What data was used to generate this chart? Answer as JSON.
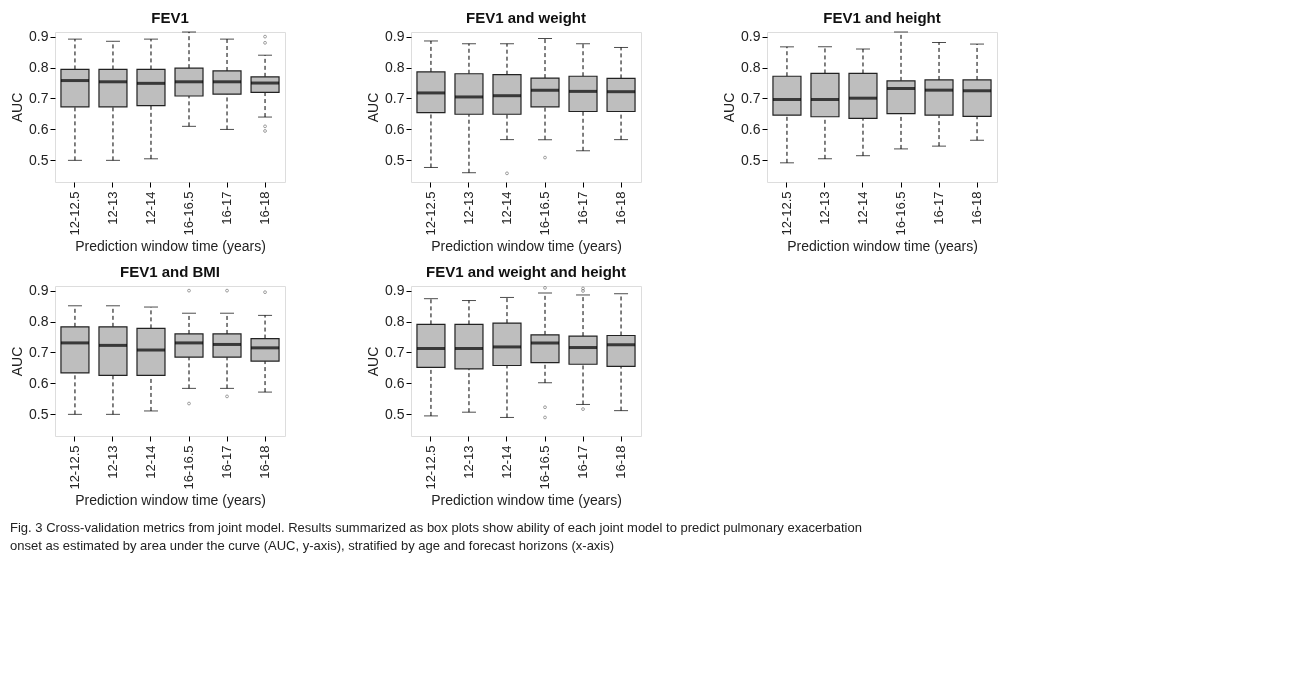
{
  "chart_data": [
    {
      "type": "box",
      "title": "FEV1",
      "xlabel": "Prediction window time (years)",
      "ylabel": "AUC",
      "categories": [
        "12-12.5",
        "12-13",
        "12-14",
        "16-16.5",
        "16-17",
        "16-18"
      ],
      "ylim": [
        0.43,
        0.915
      ],
      "yticks": [
        0.5,
        0.6,
        0.7,
        0.8,
        0.9
      ],
      "marker": "circle",
      "line_style": "dashed",
      "series": [
        {
          "color": "#bebebe",
          "boxes": [
            {
              "low": 0.5,
              "q1": 0.673,
              "median": 0.758,
              "q3": 0.794,
              "high": 0.892
            },
            {
              "low": 0.5,
              "q1": 0.673,
              "median": 0.754,
              "q3": 0.794,
              "high": 0.885
            },
            {
              "low": 0.505,
              "q1": 0.677,
              "median": 0.749,
              "q3": 0.794,
              "high": 0.892
            },
            {
              "low": 0.61,
              "q1": 0.708,
              "median": 0.754,
              "q3": 0.798,
              "high": 0.915
            },
            {
              "low": 0.6,
              "q1": 0.714,
              "median": 0.754,
              "q3": 0.789,
              "high": 0.892
            },
            {
              "low": 0.64,
              "q1": 0.72,
              "median": 0.75,
              "q3": 0.77,
              "high": 0.84,
              "outliers": [
                0.9,
                0.88,
                0.61,
                0.595
              ]
            }
          ]
        }
      ]
    },
    {
      "type": "box",
      "title": "FEV1 and weight",
      "xlabel": "Prediction window time (years)",
      "ylabel": "AUC",
      "categories": [
        "12-12.5",
        "12-13",
        "12-14",
        "16-16.5",
        "16-17",
        "16-18"
      ],
      "ylim": [
        0.43,
        0.915
      ],
      "yticks": [
        0.5,
        0.6,
        0.7,
        0.8,
        0.9
      ],
      "marker": "circle",
      "line_style": "dashed",
      "series": [
        {
          "color": "#bebebe",
          "boxes": [
            {
              "low": 0.477,
              "q1": 0.654,
              "median": 0.718,
              "q3": 0.786,
              "high": 0.886
            },
            {
              "low": 0.46,
              "q1": 0.649,
              "median": 0.705,
              "q3": 0.78,
              "high": 0.877
            },
            {
              "low": 0.567,
              "q1": 0.649,
              "median": 0.709,
              "q3": 0.777,
              "high": 0.877,
              "outliers": [
                0.458
              ]
            },
            {
              "low": 0.567,
              "q1": 0.673,
              "median": 0.727,
              "q3": 0.766,
              "high": 0.894,
              "outliers": [
                0.509
              ]
            },
            {
              "low": 0.531,
              "q1": 0.658,
              "median": 0.723,
              "q3": 0.772,
              "high": 0.877
            },
            {
              "low": 0.567,
              "q1": 0.658,
              "median": 0.722,
              "q3": 0.765,
              "high": 0.865
            }
          ]
        }
      ]
    },
    {
      "type": "box",
      "title": "FEV1 and height",
      "xlabel": "Prediction window time (years)",
      "ylabel": "AUC",
      "categories": [
        "12-12.5",
        "12-13",
        "12-14",
        "16-16.5",
        "16-17",
        "16-18"
      ],
      "ylim": [
        0.43,
        0.915
      ],
      "yticks": [
        0.5,
        0.6,
        0.7,
        0.8,
        0.9
      ],
      "marker": "circle",
      "line_style": "dashed",
      "series": [
        {
          "color": "#bebebe",
          "boxes": [
            {
              "low": 0.492,
              "q1": 0.646,
              "median": 0.697,
              "q3": 0.772,
              "high": 0.867
            },
            {
              "low": 0.505,
              "q1": 0.641,
              "median": 0.697,
              "q3": 0.781,
              "high": 0.867
            },
            {
              "low": 0.515,
              "q1": 0.636,
              "median": 0.701,
              "q3": 0.781,
              "high": 0.86
            },
            {
              "low": 0.537,
              "q1": 0.651,
              "median": 0.732,
              "q3": 0.757,
              "high": 0.915
            },
            {
              "low": 0.546,
              "q1": 0.646,
              "median": 0.727,
              "q3": 0.76,
              "high": 0.881
            },
            {
              "low": 0.565,
              "q1": 0.642,
              "median": 0.725,
              "q3": 0.76,
              "high": 0.876
            }
          ]
        }
      ]
    },
    {
      "type": "box",
      "title": "FEV1 and BMI",
      "xlabel": "Prediction window time (years)",
      "ylabel": "AUC",
      "categories": [
        "12-12.5",
        "12-13",
        "12-14",
        "16-16.5",
        "16-17",
        "16-18"
      ],
      "ylim": [
        0.43,
        0.915
      ],
      "yticks": [
        0.5,
        0.6,
        0.7,
        0.8,
        0.9
      ],
      "marker": "circle",
      "line_style": "dashed",
      "series": [
        {
          "color": "#bebebe",
          "boxes": [
            {
              "low": 0.5,
              "q1": 0.634,
              "median": 0.731,
              "q3": 0.783,
              "high": 0.851
            },
            {
              "low": 0.5,
              "q1": 0.626,
              "median": 0.723,
              "q3": 0.783,
              "high": 0.851
            },
            {
              "low": 0.511,
              "q1": 0.626,
              "median": 0.708,
              "q3": 0.778,
              "high": 0.847
            },
            {
              "low": 0.584,
              "q1": 0.685,
              "median": 0.731,
              "q3": 0.76,
              "high": 0.827,
              "outliers": [
                0.9,
                0.535
              ]
            },
            {
              "low": 0.584,
              "q1": 0.685,
              "median": 0.726,
              "q3": 0.76,
              "high": 0.827,
              "outliers": [
                0.9,
                0.558
              ]
            },
            {
              "low": 0.572,
              "q1": 0.672,
              "median": 0.715,
              "q3": 0.745,
              "high": 0.82,
              "outliers": [
                0.895
              ]
            }
          ]
        }
      ]
    },
    {
      "type": "box",
      "title": "FEV1 and weight and height",
      "xlabel": "Prediction window time (years)",
      "ylabel": "AUC",
      "categories": [
        "12-12.5",
        "12-13",
        "12-14",
        "16-16.5",
        "16-17",
        "16-18"
      ],
      "ylim": [
        0.43,
        0.915
      ],
      "yticks": [
        0.5,
        0.6,
        0.7,
        0.8,
        0.9
      ],
      "marker": "circle",
      "line_style": "dashed",
      "series": [
        {
          "color": "#bebebe",
          "boxes": [
            {
              "low": 0.495,
              "q1": 0.652,
              "median": 0.713,
              "q3": 0.791,
              "high": 0.874
            },
            {
              "low": 0.507,
              "q1": 0.647,
              "median": 0.713,
              "q3": 0.791,
              "high": 0.868
            },
            {
              "low": 0.49,
              "q1": 0.658,
              "median": 0.718,
              "q3": 0.795,
              "high": 0.878
            },
            {
              "low": 0.602,
              "q1": 0.667,
              "median": 0.731,
              "q3": 0.757,
              "high": 0.892,
              "outliers": [
                0.909,
                0.523,
                0.49
              ]
            },
            {
              "low": 0.532,
              "q1": 0.662,
              "median": 0.716,
              "q3": 0.753,
              "high": 0.886,
              "outliers": [
                0.907,
                0.899,
                0.517
              ]
            },
            {
              "low": 0.512,
              "q1": 0.655,
              "median": 0.725,
              "q3": 0.755,
              "high": 0.89
            }
          ]
        }
      ],
      "annotations": [
        "Fig. 3 Cross-validation metrics from joint model. Results summarized as box plots show ability of each joint model to predict pulmonary exacerbation onset as estimated by area under the curve (AUC, y-axis), stratified by age and forecast horizons (x-axis)"
      ]
    }
  ]
}
